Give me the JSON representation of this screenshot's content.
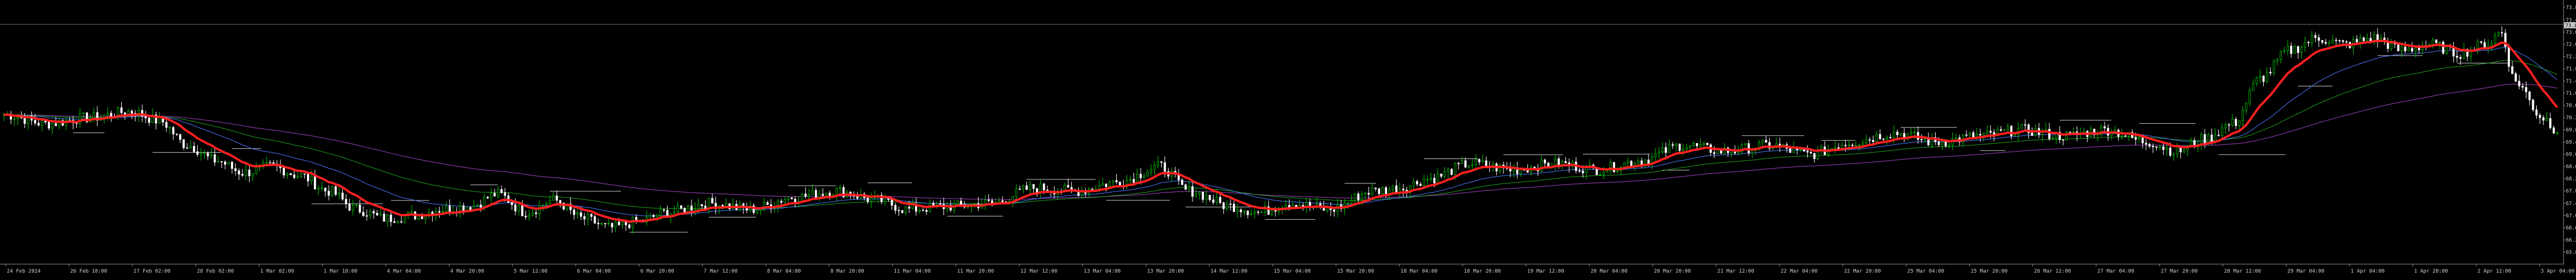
{
  "app": "trading-terminal",
  "colors": {
    "background": "#000000",
    "bull_candle": "#00c800",
    "bear_candle": "#ffffff",
    "ma_fast": "#ff2020",
    "ma_mid": "#4a78ff",
    "ma_slow": "#20a020",
    "ma_long": "#a040c0",
    "levels": "#c8c8c8",
    "axis": "#909090",
    "grid_top": "#606060"
  },
  "chart_data": {
    "type": "candlestick",
    "ylim": [
      65.5,
      73.9
    ],
    "current_price_label": "73.88",
    "y_ticks": [
      "73.81",
      "73.40",
      "73.00",
      "72.60",
      "72.20",
      "71.80",
      "71.40",
      "71.00",
      "70.60",
      "70.20",
      "69.80",
      "69.40",
      "69.00",
      "68.60",
      "68.20",
      "67.80",
      "67.40",
      "67.00",
      "66.60",
      "66.20",
      "65.80"
    ],
    "x_ticks": [
      "24 Feb 2024",
      "26 Feb 10:00",
      "27 Feb 02:00",
      "28 Feb 02:00",
      "1 Mar 02:00",
      "1 Mar 18:00",
      "4 Mar 04:00",
      "4 Mar 20:00",
      "5 Mar 12:00",
      "6 Mar 04:00",
      "6 Mar 20:00",
      "7 Mar 12:00",
      "8 Mar 04:00",
      "8 Mar 20:00",
      "11 Mar 04:00",
      "11 Mar 20:00",
      "12 Mar 12:00",
      "13 Mar 04:00",
      "13 Mar 20:00",
      "14 Mar 12:00",
      "15 Mar 04:00",
      "15 Mar 20:00",
      "18 Mar 04:00",
      "18 Mar 20:00",
      "19 Mar 12:00",
      "20 Mar 04:00",
      "20 Mar 20:00",
      "21 Mar 12:00",
      "22 Mar 04:00",
      "22 Mar 20:00",
      "25 Mar 04:00",
      "25 Mar 20:00",
      "26 Mar 12:00",
      "27 Mar 04:00",
      "27 Mar 20:00",
      "28 Mar 12:00",
      "29 Mar 04:00",
      "1 Apr 04:00",
      "1 Apr 20:00",
      "2 Apr 12:00",
      "3 Apr 04:00"
    ],
    "anchors": [
      [
        0,
        70.3
      ],
      [
        3,
        70.0
      ],
      [
        6,
        70.2
      ],
      [
        9,
        70.4
      ],
      [
        11,
        70.1
      ],
      [
        13,
        69.3
      ],
      [
        15,
        68.8
      ],
      [
        17,
        68.4
      ],
      [
        19,
        68.6
      ],
      [
        21,
        68.3
      ],
      [
        23,
        67.8
      ],
      [
        25,
        67.2
      ],
      [
        27,
        66.9
      ],
      [
        29,
        67.0
      ],
      [
        31,
        67.2
      ],
      [
        33,
        67.3
      ],
      [
        35,
        67.7
      ],
      [
        37,
        67.1
      ],
      [
        39,
        67.5
      ],
      [
        41,
        66.9
      ],
      [
        43,
        66.6
      ],
      [
        45,
        66.8
      ],
      [
        47,
        67.1
      ],
      [
        50,
        67.4
      ],
      [
        53,
        67.2
      ],
      [
        56,
        67.6
      ],
      [
        59,
        67.8
      ],
      [
        62,
        67.5
      ],
      [
        64,
        67.2
      ],
      [
        67,
        67.3
      ],
      [
        70,
        67.4
      ],
      [
        73,
        67.9
      ],
      [
        76,
        67.8
      ],
      [
        79,
        68.1
      ],
      [
        82,
        68.6
      ],
      [
        84,
        67.8
      ],
      [
        87,
        67.3
      ],
      [
        89,
        67.1
      ],
      [
        91,
        67.4
      ],
      [
        94,
        67.2
      ],
      [
        97,
        67.8
      ],
      [
        99,
        67.9
      ],
      [
        101,
        68.2
      ],
      [
        104,
        68.7
      ],
      [
        107,
        68.5
      ],
      [
        110,
        68.7
      ],
      [
        113,
        68.5
      ],
      [
        116,
        68.8
      ],
      [
        119,
        69.3
      ],
      [
        122,
        69.1
      ],
      [
        125,
        69.3
      ],
      [
        128,
        69.0
      ],
      [
        131,
        69.4
      ],
      [
        134,
        69.7
      ],
      [
        137,
        69.4
      ],
      [
        140,
        69.6
      ],
      [
        143,
        69.8
      ],
      [
        146,
        69.6
      ],
      [
        149,
        69.8
      ],
      [
        152,
        69.4
      ],
      [
        154,
        69.1
      ],
      [
        156,
        69.5
      ],
      [
        158,
        70.0
      ],
      [
        160,
        71.5
      ],
      [
        162,
        72.4
      ],
      [
        164,
        72.8
      ],
      [
        166,
        72.6
      ],
      [
        168,
        72.8
      ],
      [
        170,
        72.4
      ],
      [
        172,
        72.6
      ],
      [
        174,
        72.3
      ],
      [
        176,
        72.6
      ],
      [
        177,
        73.0
      ],
      [
        178,
        71.4
      ],
      [
        180,
        70.2
      ],
      [
        181,
        69.8
      ]
    ]
  }
}
